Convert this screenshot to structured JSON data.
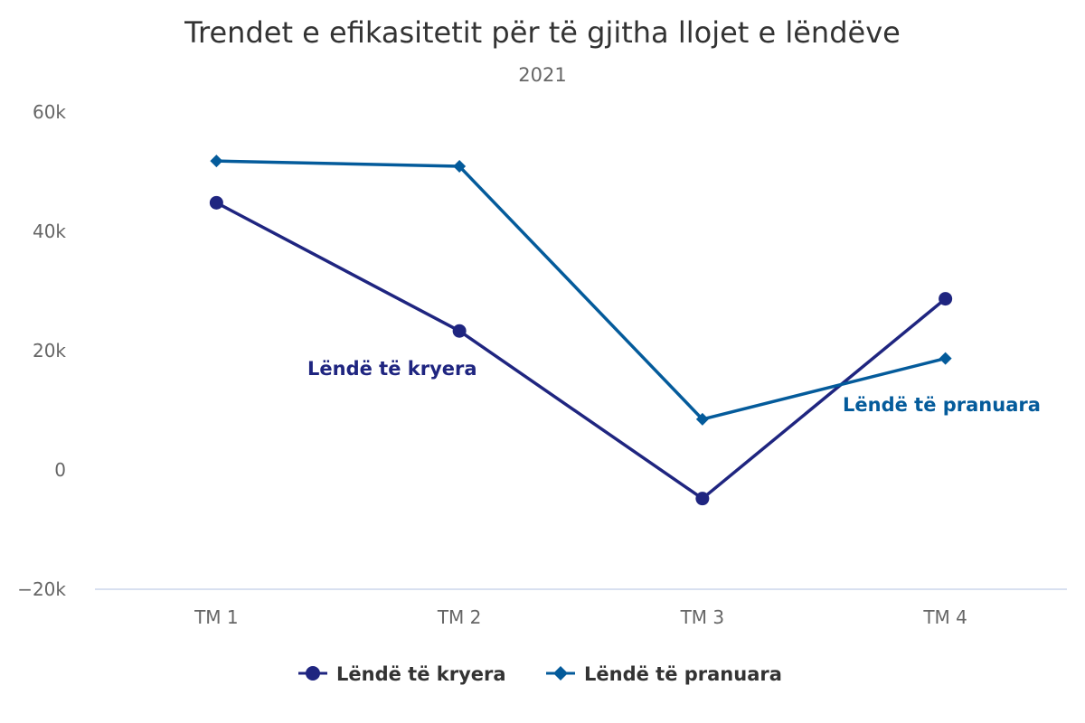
{
  "chart_data": {
    "type": "line",
    "title": "Trendet e efikasitetit për të gjitha llojet e lëndëve",
    "subtitle": "2021",
    "categories": [
      "TM 1",
      "TM 2",
      "TM 3",
      "TM 4"
    ],
    "ylim": [
      -20000,
      60000
    ],
    "yticks": [
      {
        "value": -20000,
        "label": "−20k"
      },
      {
        "value": 0,
        "label": "0"
      },
      {
        "value": 20000,
        "label": "20k"
      },
      {
        "value": 40000,
        "label": "40k"
      },
      {
        "value": 60000,
        "label": "60k"
      }
    ],
    "grid": false,
    "legend_position": "bottom-center",
    "series": [
      {
        "name": "Lëndë të kryera",
        "values": [
          44800,
          23300,
          -4800,
          28700
        ],
        "color": "#1f2580",
        "marker": "circle"
      },
      {
        "name": "Lëndë të pranuara",
        "values": [
          51800,
          50900,
          8500,
          18700
        ],
        "color": "#045b9b",
        "marker": "diamond"
      }
    ]
  }
}
